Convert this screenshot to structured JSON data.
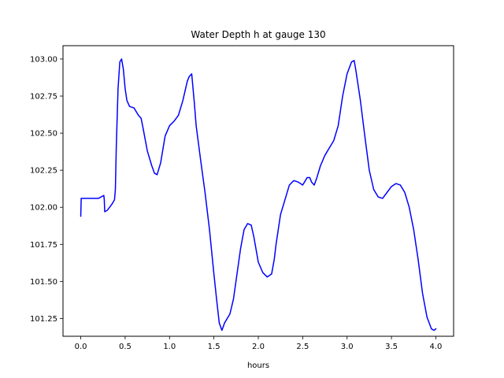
{
  "chart_data": {
    "type": "line",
    "title": "Water Depth h at gauge 130",
    "xlabel": "hours",
    "ylabel": "",
    "xlim": [
      -0.2,
      4.2
    ],
    "ylim": [
      101.13,
      103.09
    ],
    "xticks": [
      0.0,
      0.5,
      1.0,
      1.5,
      2.0,
      2.5,
      3.0,
      3.5,
      4.0
    ],
    "xtick_labels": [
      "0.0",
      "0.5",
      "1.0",
      "1.5",
      "2.0",
      "2.5",
      "3.0",
      "3.5",
      "4.0"
    ],
    "yticks": [
      101.25,
      101.5,
      101.75,
      102.0,
      102.25,
      102.5,
      102.75,
      103.0
    ],
    "ytick_labels": [
      "101.25",
      "101.50",
      "101.75",
      "102.00",
      "102.25",
      "102.50",
      "102.75",
      "103.00"
    ],
    "grid": false,
    "series": [
      {
        "color": "#0000ff",
        "x": [
          0.0,
          0.005,
          0.01,
          0.1,
          0.2,
          0.26,
          0.265,
          0.27,
          0.3,
          0.35,
          0.38,
          0.39,
          0.4,
          0.42,
          0.44,
          0.45,
          0.46,
          0.48,
          0.5,
          0.52,
          0.55,
          0.6,
          0.62,
          0.65,
          0.68,
          0.7,
          0.75,
          0.8,
          0.83,
          0.86,
          0.9,
          0.95,
          1.0,
          1.05,
          1.1,
          1.15,
          1.2,
          1.22,
          1.25,
          1.28,
          1.3,
          1.35,
          1.4,
          1.45,
          1.5,
          1.53,
          1.56,
          1.59,
          1.62,
          1.65,
          1.68,
          1.72,
          1.76,
          1.8,
          1.84,
          1.88,
          1.92,
          1.95,
          2.0,
          2.05,
          2.1,
          2.15,
          2.18,
          2.2,
          2.25,
          2.3,
          2.35,
          2.4,
          2.45,
          2.5,
          2.55,
          2.58,
          2.6,
          2.63,
          2.66,
          2.7,
          2.75,
          2.8,
          2.85,
          2.9,
          2.95,
          3.0,
          3.05,
          3.08,
          3.1,
          3.15,
          3.2,
          3.25,
          3.3,
          3.35,
          3.4,
          3.45,
          3.5,
          3.55,
          3.6,
          3.65,
          3.7,
          3.75,
          3.8,
          3.85,
          3.9,
          3.95,
          3.98,
          4.0
        ],
        "y": [
          101.94,
          102.06,
          102.06,
          102.06,
          102.06,
          102.08,
          102.05,
          101.97,
          101.98,
          102.02,
          102.05,
          102.12,
          102.4,
          102.8,
          102.98,
          102.99,
          103.0,
          102.93,
          102.8,
          102.72,
          102.68,
          102.67,
          102.65,
          102.62,
          102.6,
          102.54,
          102.38,
          102.28,
          102.23,
          102.22,
          102.3,
          102.48,
          102.55,
          102.58,
          102.62,
          102.72,
          102.85,
          102.88,
          102.9,
          102.7,
          102.55,
          102.32,
          102.1,
          101.85,
          101.55,
          101.38,
          101.22,
          101.17,
          101.22,
          101.25,
          101.28,
          101.38,
          101.55,
          101.72,
          101.85,
          101.89,
          101.88,
          101.8,
          101.63,
          101.56,
          101.53,
          101.55,
          101.65,
          101.75,
          101.95,
          102.05,
          102.15,
          102.18,
          102.17,
          102.15,
          102.2,
          102.2,
          102.17,
          102.15,
          102.2,
          102.28,
          102.35,
          102.4,
          102.45,
          102.55,
          102.75,
          102.9,
          102.98,
          102.99,
          102.92,
          102.72,
          102.48,
          102.25,
          102.12,
          102.07,
          102.06,
          102.1,
          102.14,
          102.16,
          102.15,
          102.1,
          102.0,
          101.85,
          101.65,
          101.42,
          101.26,
          101.18,
          101.17,
          101.18
        ]
      }
    ]
  }
}
